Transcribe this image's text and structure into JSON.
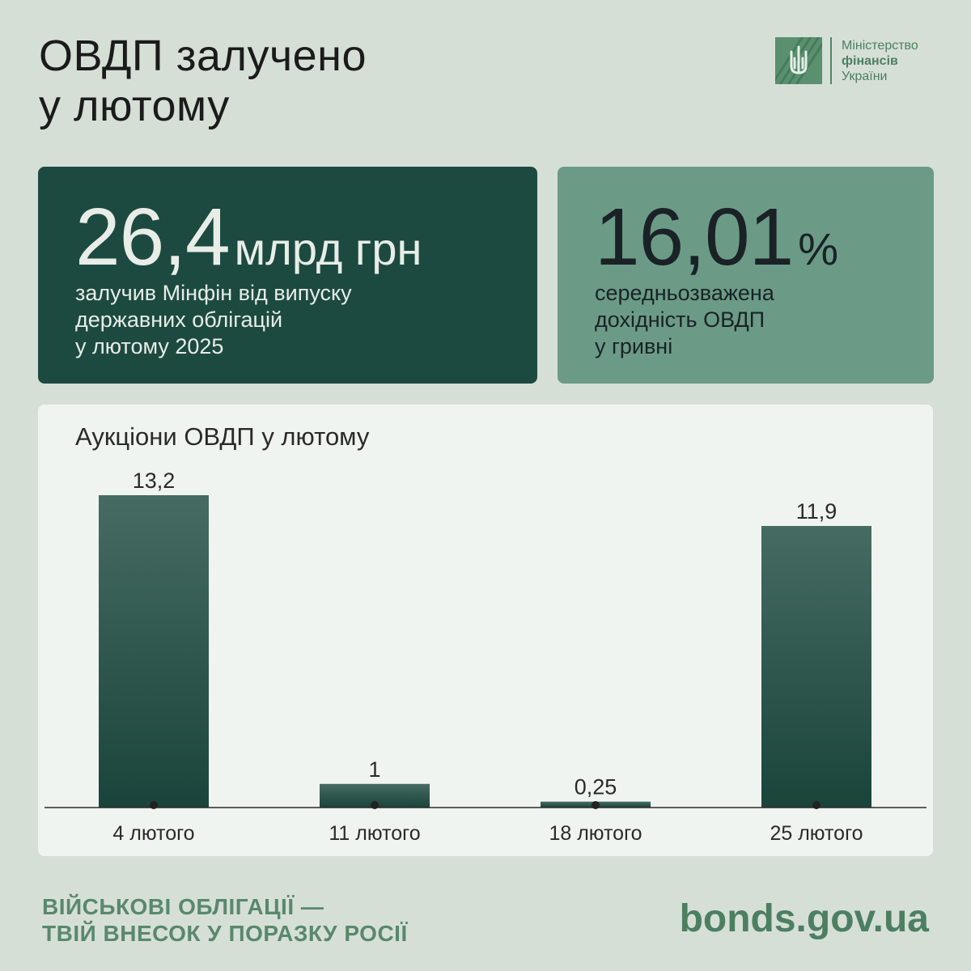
{
  "title": {
    "line1": "ОВДП залучено",
    "line2": "у лютому"
  },
  "logo": {
    "line1": "Міністерство",
    "line2": "фінансів",
    "line3": "України",
    "icon": "trident-emblem-icon"
  },
  "card_total": {
    "value": "26,4",
    "unit": "млрд грн",
    "desc_line1": "залучив Мінфін від випуску",
    "desc_line2": "державних облігацій",
    "desc_line3": "у лютому 2025"
  },
  "card_yield": {
    "value": "16,01",
    "unit": "%",
    "desc_line1": "середньозважена",
    "desc_line2": "дохідність ОВДП",
    "desc_line3": "у гривні"
  },
  "chart_data": {
    "type": "bar",
    "title": "Аукціони ОВДП у лютому",
    "categories": [
      "4 лютого",
      "11 лютого",
      "18 лютого",
      "25 лютого"
    ],
    "values": [
      13.2,
      1,
      0.25,
      11.9
    ],
    "value_labels": [
      "13,2",
      "1",
      "0,25",
      "11,9"
    ],
    "xlabel": "",
    "ylabel": "",
    "ylim": [
      0,
      13.2
    ],
    "grid": false,
    "bar_color_top": "#466b62",
    "bar_color_bottom": "#1a443b"
  },
  "footer": {
    "slogan_line1": "ВІЙСЬКОВІ ОБЛІГАЦІЇ —",
    "slogan_line2": "ТВІЙ ВНЕСОК У ПОРАЗКУ РОСІЇ",
    "site": "bonds.gov.ua"
  },
  "colors": {
    "background": "#d6dfd6",
    "card_dark": "#1c4a40",
    "card_light": "#6b9b86",
    "accent": "#4c7f62"
  }
}
